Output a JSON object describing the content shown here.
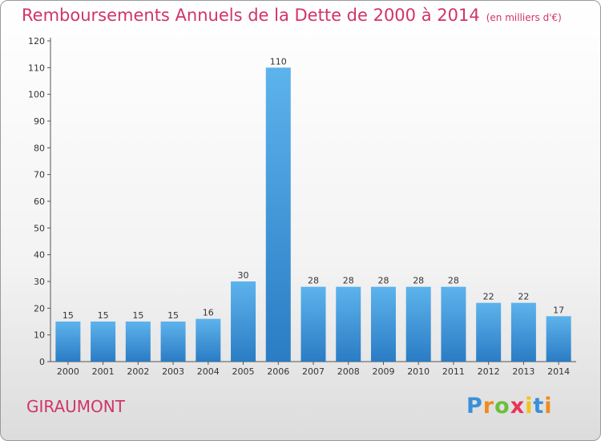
{
  "title": "Remboursements Annuels de la Dette de 2000 à 2014",
  "title_unit": "(en milliers d'€)",
  "commune": "GIRAUMONT",
  "brand": {
    "letters": [
      "P",
      "r",
      "o",
      "x",
      "i",
      "t",
      "i"
    ],
    "colors": [
      "#3a8fd8",
      "#f08a1c",
      "#6bbf3a",
      "#e8335a",
      "#f2c21b",
      "#3a8fd8",
      "#f08a1c"
    ]
  },
  "colors": {
    "title": "#d0346a",
    "bar_light": "#5db3ec",
    "bar_dark": "#2a7cc4"
  },
  "chart_data": {
    "type": "bar",
    "title": "Remboursements Annuels de la Dette de 2000 à 2014",
    "categories": [
      "2000",
      "2001",
      "2002",
      "2003",
      "2004",
      "2005",
      "2006",
      "2007",
      "2008",
      "2009",
      "2010",
      "2011",
      "2012",
      "2013",
      "2014"
    ],
    "values": [
      15,
      15,
      15,
      15,
      16,
      30,
      110,
      28,
      28,
      28,
      28,
      28,
      22,
      22,
      17
    ],
    "xlabel": "",
    "ylabel": "",
    "ylim": [
      0,
      120
    ],
    "yticks": [
      0,
      10,
      20,
      30,
      40,
      50,
      60,
      70,
      80,
      90,
      100,
      110,
      120
    ],
    "grid": false,
    "legend": "none"
  }
}
